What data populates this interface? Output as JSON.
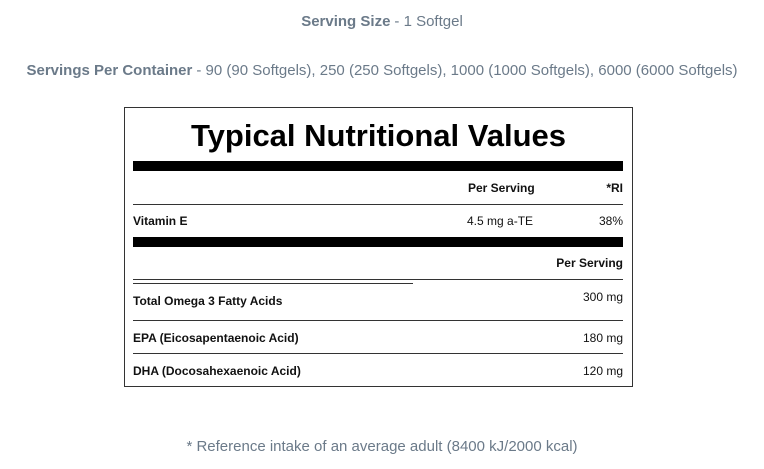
{
  "serving_size": {
    "label": "Serving Size",
    "value": "- 1 Softgel"
  },
  "servings_per_container": {
    "label": "Servings Per Container",
    "value": "- 90 (90 Softgels), 250 (250 Softgels), 1000 (1000 Softgels), 6000 (6000 Softgels)"
  },
  "table": {
    "title": "Typical Nutritional Values",
    "vitamins": {
      "header": [
        "Per Serving",
        "*RI"
      ],
      "rows": [
        [
          "Vitamin E",
          "4.5 mg a-TE",
          "38%"
        ]
      ]
    },
    "fatty_acids": {
      "header": [
        "Per Serving"
      ],
      "rows": [
        [
          "Total Omega 3 Fatty Acids",
          "300 mg"
        ],
        [
          "EPA (Eicosapentaenoic Acid)",
          "180 mg"
        ],
        [
          "DHA (Docosahexaenoic Acid)",
          "120 mg"
        ]
      ]
    }
  },
  "footnote": "* Reference intake of an average adult (8400 kJ/2000 kcal)"
}
